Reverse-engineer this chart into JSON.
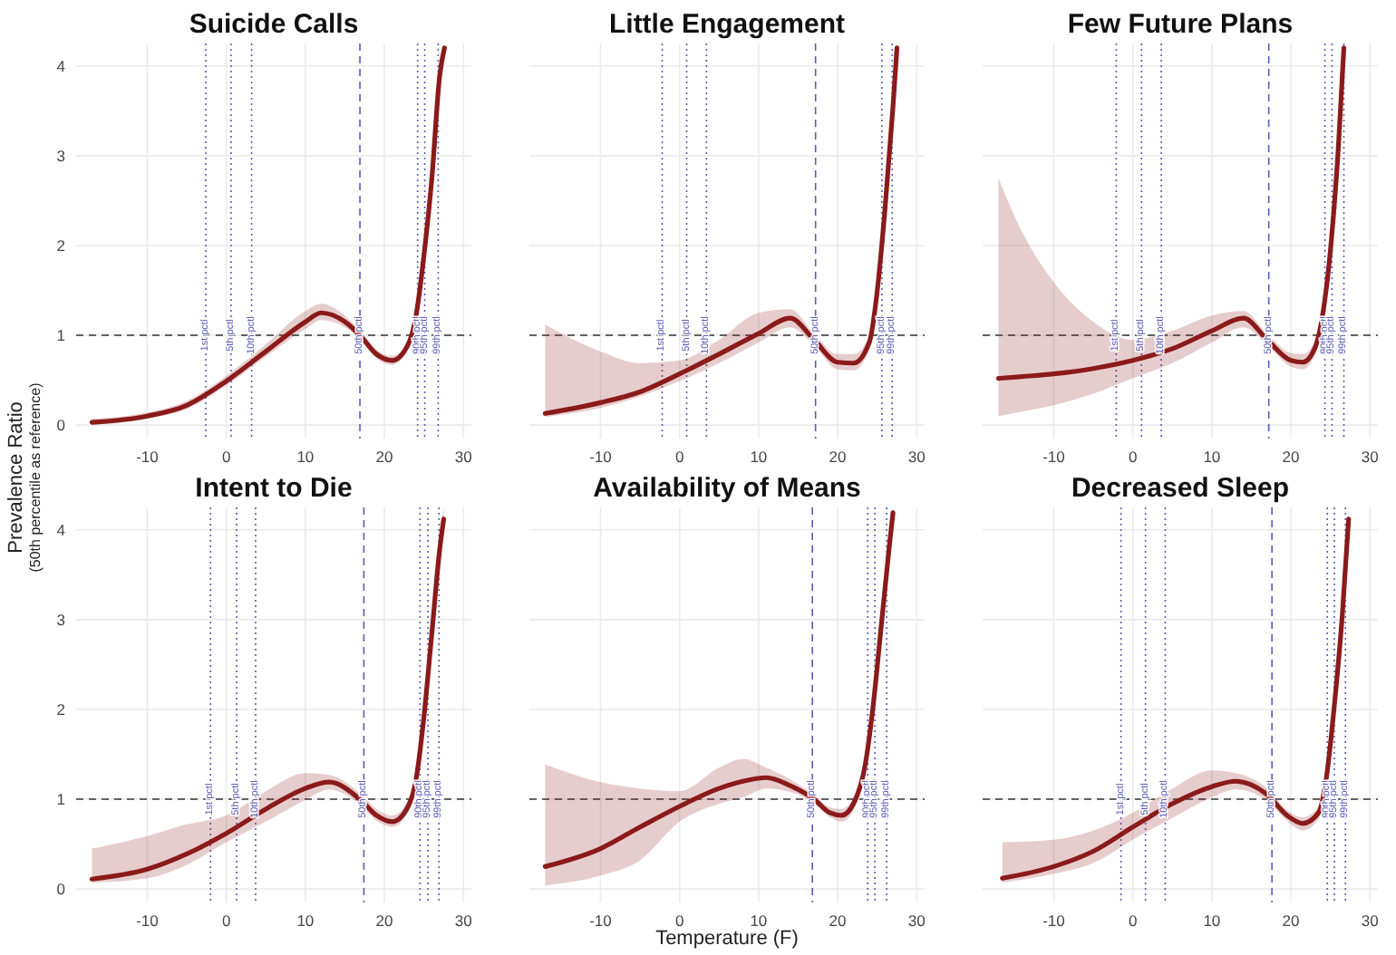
{
  "chart_data": [
    {
      "type": "line",
      "title": "Suicide Calls",
      "ylabel": "Prevalence Ratio\n(50th percentile as reference)",
      "xlim": [
        -19,
        31
      ],
      "xticks": [
        -10,
        0,
        10,
        20,
        30
      ],
      "ylim": [
        -0.15,
        4.25
      ],
      "yticks": [
        0,
        1,
        2,
        3,
        4
      ],
      "grid": true,
      "series": [
        {
          "color": "#8b1a1a",
          "x": [
            -17,
            -10,
            -5,
            0,
            5,
            10,
            12,
            15,
            17,
            19,
            21,
            22.5,
            24,
            25,
            26,
            27,
            27.6
          ],
          "values": [
            0.03,
            0.1,
            0.22,
            0.49,
            0.82,
            1.15,
            1.25,
            1.15,
            0.99,
            0.79,
            0.72,
            0.82,
            1.22,
            1.89,
            2.75,
            3.9,
            4.2
          ],
          "lower": [
            0.0,
            0.07,
            0.18,
            0.44,
            0.76,
            1.07,
            1.17,
            1.09,
            0.95,
            0.74,
            0.67,
            0.77,
            1.15,
            1.8,
            2.63,
            3.75,
            4.05
          ],
          "upper": [
            0.07,
            0.14,
            0.27,
            0.55,
            0.9,
            1.27,
            1.35,
            1.22,
            1.04,
            0.84,
            0.77,
            0.87,
            1.3,
            1.98,
            2.87,
            4.05,
            4.25
          ]
        }
      ],
      "ref_lines": [
        {
          "axis": "y",
          "value": 1,
          "line_style": "dashed",
          "color": "#333333"
        },
        {
          "axis": "x",
          "value": -2.6,
          "label": "1st pctl",
          "line_style": "dotted",
          "color": "#5b5bb5"
        },
        {
          "axis": "x",
          "value": 0.6,
          "label": "5th pctl",
          "line_style": "dotted",
          "color": "#5b5bb5"
        },
        {
          "axis": "x",
          "value": 3.2,
          "label": "10th pctl",
          "line_style": "dotted",
          "color": "#5b5bb5"
        },
        {
          "axis": "x",
          "value": 16.9,
          "label": "50th pctl",
          "line_style": "dashed",
          "color": "#5b5bb5"
        },
        {
          "axis": "x",
          "value": 24.2,
          "label": "90th pctl",
          "line_style": "dotted",
          "color": "#5b5bb5"
        },
        {
          "axis": "x",
          "value": 25.1,
          "label": "95th pctl",
          "line_style": "dotted",
          "color": "#5b5bb5"
        },
        {
          "axis": "x",
          "value": 26.8,
          "label": "99th pctl",
          "line_style": "dotted",
          "color": "#5b5bb5"
        }
      ]
    },
    {
      "type": "line",
      "title": "Little Engagement",
      "xlim": [
        -19,
        31
      ],
      "xticks": [
        -10,
        0,
        10,
        20,
        30
      ],
      "ylim": [
        -0.15,
        4.25
      ],
      "yticks": [
        0,
        1,
        2,
        3,
        4
      ],
      "grid": true,
      "tick_labels": "x",
      "series": [
        {
          "color": "#8b1a1a",
          "x": [
            -17,
            -10,
            -5,
            0,
            5,
            10,
            14,
            17,
            20,
            22,
            24,
            25,
            26,
            27,
            27.5
          ],
          "values": [
            0.13,
            0.25,
            0.37,
            0.57,
            0.79,
            1.02,
            1.19,
            0.95,
            0.7,
            0.69,
            0.92,
            1.49,
            2.42,
            3.55,
            4.2
          ],
          "lower": [
            0.09,
            0.19,
            0.32,
            0.49,
            0.69,
            0.92,
            1.09,
            0.89,
            0.62,
            0.61,
            0.85,
            1.4,
            2.3,
            3.4,
            4.05
          ],
          "upper": [
            1.12,
            0.82,
            0.69,
            0.72,
            0.95,
            1.25,
            1.29,
            1.02,
            0.79,
            0.79,
            1.0,
            1.58,
            2.55,
            3.7,
            4.25
          ]
        }
      ],
      "ref_lines": [
        {
          "axis": "y",
          "value": 1,
          "line_style": "dashed",
          "color": "#333333"
        },
        {
          "axis": "x",
          "value": -2.2,
          "label": "1st pctl",
          "line_style": "dotted",
          "color": "#5b5bb5"
        },
        {
          "axis": "x",
          "value": 0.9,
          "label": "5th pctl",
          "line_style": "dotted",
          "color": "#5b5bb5"
        },
        {
          "axis": "x",
          "value": 3.4,
          "label": "10th pctl",
          "line_style": "dotted",
          "color": "#5b5bb5"
        },
        {
          "axis": "x",
          "value": 17.2,
          "label": "50th pctl",
          "line_style": "dashed",
          "color": "#5b5bb5"
        },
        {
          "axis": "x",
          "value": 25.6,
          "label": "95th pctl",
          "line_style": "dotted",
          "color": "#5b5bb5"
        },
        {
          "axis": "x",
          "value": 26.9,
          "label": "99th pctl",
          "line_style": "dotted",
          "color": "#5b5bb5"
        }
      ]
    },
    {
      "type": "line",
      "title": "Few Future Plans",
      "xlim": [
        -19,
        31
      ],
      "xticks": [
        -10,
        0,
        10,
        20,
        30
      ],
      "ylim": [
        -0.15,
        4.25
      ],
      "yticks": [
        0,
        1,
        2,
        3,
        4
      ],
      "grid": true,
      "tick_labels": "x",
      "series": [
        {
          "color": "#8b1a1a",
          "x": [
            -17,
            -14,
            -10,
            -5,
            0,
            5,
            10,
            14,
            17,
            20,
            21.5,
            23,
            24,
            25,
            26,
            26.7
          ],
          "values": [
            0.52,
            0.54,
            0.57,
            0.63,
            0.72,
            0.85,
            1.05,
            1.19,
            0.95,
            0.72,
            0.7,
            0.85,
            1.22,
            1.95,
            3.09,
            4.2
          ],
          "lower": [
            0.1,
            0.15,
            0.22,
            0.35,
            0.52,
            0.69,
            0.92,
            1.09,
            0.89,
            0.65,
            0.62,
            0.78,
            1.14,
            1.85,
            2.95,
            4.05
          ],
          "upper": [
            2.75,
            2.15,
            1.59,
            1.15,
            0.95,
            1.05,
            1.22,
            1.27,
            1.02,
            0.8,
            0.79,
            0.93,
            1.3,
            2.05,
            3.25,
            4.25
          ]
        }
      ],
      "ref_lines": [
        {
          "axis": "y",
          "value": 1,
          "line_style": "dashed",
          "color": "#333333"
        },
        {
          "axis": "x",
          "value": -2.1,
          "label": "1st pctl",
          "line_style": "dotted",
          "color": "#5b5bb5"
        },
        {
          "axis": "x",
          "value": 1.1,
          "label": "5th pctl",
          "line_style": "dotted",
          "color": "#5b5bb5"
        },
        {
          "axis": "x",
          "value": 3.6,
          "label": "10th pctl",
          "line_style": "dotted",
          "color": "#5b5bb5"
        },
        {
          "axis": "x",
          "value": 17.2,
          "label": "50th pctl",
          "line_style": "dashed",
          "color": "#5b5bb5"
        },
        {
          "axis": "x",
          "value": 24.3,
          "label": "90th pctl",
          "line_style": "dotted",
          "color": "#5b5bb5"
        },
        {
          "axis": "x",
          "value": 25.2,
          "label": "95th pctl",
          "line_style": "dotted",
          "color": "#5b5bb5"
        },
        {
          "axis": "x",
          "value": 26.7,
          "label": "99th pctl",
          "line_style": "dotted",
          "color": "#5b5bb5"
        }
      ]
    },
    {
      "type": "line",
      "title": "Intent to Die",
      "xlim": [
        -19,
        31
      ],
      "xticks": [
        -10,
        0,
        10,
        20,
        30
      ],
      "ylim": [
        -0.15,
        4.25
      ],
      "yticks": [
        0,
        1,
        2,
        3,
        4
      ],
      "grid": true,
      "series": [
        {
          "color": "#8b1a1a",
          "x": [
            -17,
            -10,
            -5,
            0,
            5,
            10,
            13,
            17,
            19,
            21,
            23,
            24,
            25,
            26,
            27,
            27.5
          ],
          "values": [
            0.11,
            0.22,
            0.39,
            0.62,
            0.89,
            1.12,
            1.19,
            0.99,
            0.82,
            0.75,
            0.92,
            1.22,
            1.92,
            2.85,
            3.79,
            4.12
          ],
          "lower": [
            0.07,
            0.12,
            0.27,
            0.52,
            0.75,
            0.99,
            1.11,
            0.93,
            0.76,
            0.69,
            0.86,
            1.15,
            1.82,
            2.72,
            3.62,
            3.95
          ],
          "upper": [
            0.45,
            0.59,
            0.72,
            0.82,
            1.09,
            1.29,
            1.27,
            1.06,
            0.89,
            0.82,
            0.99,
            1.3,
            2.02,
            2.98,
            3.95,
            4.25
          ]
        }
      ],
      "ref_lines": [
        {
          "axis": "y",
          "value": 1,
          "line_style": "dashed",
          "color": "#333333"
        },
        {
          "axis": "x",
          "value": -2.0,
          "label": "1st pctl",
          "line_style": "dotted",
          "color": "#5b5bb5"
        },
        {
          "axis": "x",
          "value": 1.3,
          "label": "5th pctl",
          "line_style": "dotted",
          "color": "#5b5bb5"
        },
        {
          "axis": "x",
          "value": 3.7,
          "label": "10th pctl",
          "line_style": "dotted",
          "color": "#5b5bb5"
        },
        {
          "axis": "x",
          "value": 17.4,
          "label": "50th pctl",
          "line_style": "dashed",
          "color": "#5b5bb5"
        },
        {
          "axis": "x",
          "value": 24.5,
          "label": "90th pctl",
          "line_style": "dotted",
          "color": "#5b5bb5"
        },
        {
          "axis": "x",
          "value": 25.5,
          "label": "95th pctl",
          "line_style": "dotted",
          "color": "#5b5bb5"
        },
        {
          "axis": "x",
          "value": 26.9,
          "label": "99th pctl",
          "line_style": "dotted",
          "color": "#5b5bb5"
        }
      ]
    },
    {
      "type": "line",
      "title": "Availability of Means",
      "xlabel": "Temperature (F)",
      "xlim": [
        -19,
        31
      ],
      "xticks": [
        -10,
        0,
        10,
        20,
        30
      ],
      "ylim": [
        -0.15,
        4.25
      ],
      "yticks": [
        0,
        1,
        2,
        3,
        4
      ],
      "grid": true,
      "tick_labels": "x",
      "series": [
        {
          "color": "#8b1a1a",
          "x": [
            -17,
            -10,
            -5,
            0,
            5,
            8,
            11,
            14,
            17,
            19,
            20.5,
            22,
            23.5,
            24.5,
            25.5,
            26.5,
            27
          ],
          "values": [
            0.25,
            0.45,
            0.69,
            0.92,
            1.12,
            1.2,
            1.24,
            1.15,
            1.0,
            0.85,
            0.82,
            0.95,
            1.39,
            2.05,
            2.92,
            3.79,
            4.19
          ],
          "lower": [
            0.04,
            0.15,
            0.32,
            0.75,
            0.95,
            1.02,
            1.12,
            1.08,
            0.95,
            0.8,
            0.75,
            0.88,
            1.3,
            1.95,
            2.78,
            3.62,
            4.0
          ],
          "upper": [
            1.39,
            1.19,
            1.12,
            1.09,
            1.35,
            1.45,
            1.35,
            1.22,
            1.05,
            0.91,
            0.89,
            1.02,
            1.48,
            2.15,
            3.06,
            3.96,
            4.25
          ]
        }
      ],
      "ref_lines": [
        {
          "axis": "y",
          "value": 1,
          "line_style": "dashed",
          "color": "#333333"
        },
        {
          "axis": "x",
          "value": 16.8,
          "label": "50th pctl",
          "line_style": "dashed",
          "color": "#5b5bb5"
        },
        {
          "axis": "x",
          "value": 23.8,
          "label": "90th pctl",
          "line_style": "dotted",
          "color": "#5b5bb5"
        },
        {
          "axis": "x",
          "value": 24.7,
          "label": "95th pctl",
          "line_style": "dotted",
          "color": "#5b5bb5"
        },
        {
          "axis": "x",
          "value": 26.2,
          "label": "99th pctl",
          "line_style": "dotted",
          "color": "#5b5bb5"
        }
      ]
    },
    {
      "type": "line",
      "title": "Decreased Sleep",
      "xlim": [
        -19,
        31
      ],
      "xticks": [
        -10,
        0,
        10,
        20,
        30
      ],
      "ylim": [
        -0.15,
        4.25
      ],
      "yticks": [
        0,
        1,
        2,
        3,
        4
      ],
      "grid": true,
      "tick_labels": "x",
      "series": [
        {
          "color": "#8b1a1a",
          "x": [
            -16.5,
            -10,
            -5,
            0,
            5,
            10,
            13,
            17,
            19.5,
            21.5,
            23.5,
            24.5,
            25.5,
            26.5,
            27.3
          ],
          "values": [
            0.12,
            0.25,
            0.42,
            0.69,
            0.95,
            1.14,
            1.2,
            1.05,
            0.82,
            0.73,
            0.85,
            1.25,
            2.05,
            3.05,
            4.12
          ],
          "lower": [
            0.07,
            0.17,
            0.29,
            0.55,
            0.79,
            1.02,
            1.11,
            0.98,
            0.76,
            0.65,
            0.78,
            1.17,
            1.95,
            2.92,
            3.95
          ],
          "upper": [
            0.52,
            0.55,
            0.65,
            0.85,
            1.12,
            1.32,
            1.29,
            1.12,
            0.88,
            0.8,
            0.92,
            1.33,
            2.15,
            3.2,
            4.25
          ]
        }
      ],
      "ref_lines": [
        {
          "axis": "y",
          "value": 1,
          "line_style": "dashed",
          "color": "#333333"
        },
        {
          "axis": "x",
          "value": -1.5,
          "label": "1st pctl",
          "line_style": "dotted",
          "color": "#5b5bb5"
        },
        {
          "axis": "x",
          "value": 1.6,
          "label": "5th pctl",
          "line_style": "dotted",
          "color": "#5b5bb5"
        },
        {
          "axis": "x",
          "value": 4.1,
          "label": "10th pctl",
          "line_style": "dotted",
          "color": "#5b5bb5"
        },
        {
          "axis": "x",
          "value": 17.6,
          "label": "50th pctl",
          "line_style": "dashed",
          "color": "#5b5bb5"
        },
        {
          "axis": "x",
          "value": 24.6,
          "label": "90th pctl",
          "line_style": "dotted",
          "color": "#5b5bb5"
        },
        {
          "axis": "x",
          "value": 25.5,
          "label": "95th pctl",
          "line_style": "dotted",
          "color": "#5b5bb5"
        },
        {
          "axis": "x",
          "value": 26.9,
          "label": "99th pctl",
          "line_style": "dotted",
          "color": "#5b5bb5"
        }
      ]
    }
  ]
}
